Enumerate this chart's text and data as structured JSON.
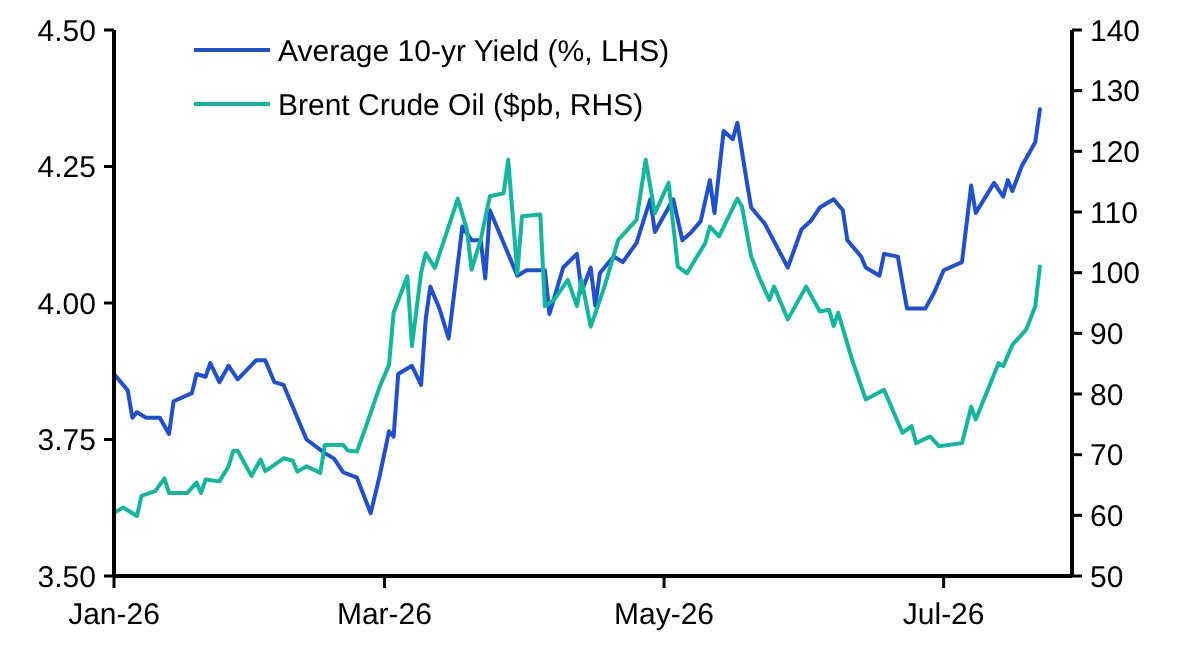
{
  "chart_data": {
    "type": "line",
    "xlim": [
      "2026-01-01",
      "2026-07-29"
    ],
    "xticks": [
      {
        "value": "2026-01-01",
        "label": "Jan-26"
      },
      {
        "value": "2026-03-01",
        "label": "Mar-26"
      },
      {
        "value": "2026-05-01",
        "label": "May-26"
      },
      {
        "value": "2026-07-01",
        "label": "Jul-26"
      }
    ],
    "ylim": [
      3.5,
      4.5
    ],
    "yticks": [
      {
        "value": 3.5,
        "label": "3.50"
      },
      {
        "value": 3.75,
        "label": "3.75"
      },
      {
        "value": 4,
        "label": "4.00"
      },
      {
        "value": 4.25,
        "label": "4.25"
      },
      {
        "value": 4.5,
        "label": "4.50"
      }
    ],
    "y2lim": [
      50,
      140
    ],
    "y2ticks": [
      50,
      60,
      70,
      80,
      90,
      100,
      110,
      120,
      130,
      140
    ],
    "grid": false,
    "legend": "top left",
    "marker": "none",
    "line_style": "solid",
    "series": [
      {
        "name": "Average 10-yr Yield (%, LHS)",
        "color": "#1f4fd2",
        "x": [
          "2026-01-01",
          "2026-01-04",
          "2026-01-05",
          "2026-01-06",
          "2026-01-08",
          "2026-01-11",
          "2026-01-13",
          "2026-01-14",
          "2026-01-18",
          "2026-01-19",
          "2026-01-21",
          "2026-01-22",
          "2026-01-24",
          "2026-01-26",
          "2026-01-28",
          "2026-02-01",
          "2026-02-03",
          "2026-02-05",
          "2026-02-07",
          "2026-02-12",
          "2026-02-16",
          "2026-02-18",
          "2026-02-20",
          "2026-02-23",
          "2026-02-26",
          "2026-02-28",
          "2026-03-02",
          "2026-03-03",
          "2026-03-04",
          "2026-03-07",
          "2026-03-09",
          "2026-03-10",
          "2026-03-11",
          "2026-03-13",
          "2026-03-15",
          "2026-03-18",
          "2026-03-20",
          "2026-03-22",
          "2026-03-23",
          "2026-03-24",
          "2026-03-30",
          "2026-04-01",
          "2026-04-05",
          "2026-04-06",
          "2026-04-09",
          "2026-04-12",
          "2026-04-13",
          "2026-04-15",
          "2026-04-16",
          "2026-04-17",
          "2026-04-20",
          "2026-04-22",
          "2026-04-25",
          "2026-04-28",
          "2026-04-29",
          "2026-05-03",
          "2026-05-05",
          "2026-05-07",
          "2026-05-09",
          "2026-05-11",
          "2026-05-12",
          "2026-05-14",
          "2026-05-16",
          "2026-05-17",
          "2026-05-19",
          "2026-05-20",
          "2026-05-23",
          "2026-05-28",
          "2026-05-31",
          "2026-06-02",
          "2026-06-04",
          "2026-06-07",
          "2026-06-09",
          "2026-06-10",
          "2026-06-13",
          "2026-06-14",
          "2026-06-17",
          "2026-06-18",
          "2026-06-21",
          "2026-06-23",
          "2026-06-27",
          "2026-06-29",
          "2026-07-01",
          "2026-07-05",
          "2026-07-07",
          "2026-07-08",
          "2026-07-12",
          "2026-07-14",
          "2026-07-15",
          "2026-07-16",
          "2026-07-18",
          "2026-07-21",
          "2026-07-22"
        ],
        "values": [
          3.87,
          3.84,
          3.79,
          3.8,
          3.79,
          3.79,
          3.76,
          3.82,
          3.835,
          3.87,
          3.865,
          3.89,
          3.855,
          3.885,
          3.86,
          3.895,
          3.895,
          3.855,
          3.85,
          3.75,
          3.725,
          3.715,
          3.69,
          3.68,
          3.615,
          3.685,
          3.765,
          3.755,
          3.87,
          3.885,
          3.85,
          3.97,
          4.03,
          3.99,
          3.935,
          4.14,
          4.115,
          4.115,
          4.045,
          4.17,
          4.05,
          4.06,
          4.06,
          3.98,
          4.065,
          4.09,
          4.02,
          4.065,
          3.995,
          4.055,
          4.085,
          4.075,
          4.11,
          4.19,
          4.13,
          4.19,
          4.115,
          4.13,
          4.15,
          4.225,
          4.165,
          4.315,
          4.3,
          4.33,
          4.225,
          4.175,
          4.145,
          4.065,
          4.135,
          4.15,
          4.175,
          4.19,
          4.17,
          4.115,
          4.085,
          4.065,
          4.05,
          4.09,
          4.085,
          3.99,
          3.99,
          4.02,
          4.06,
          4.075,
          4.215,
          4.165,
          4.22,
          4.195,
          4.225,
          4.205,
          4.25,
          4.295,
          4.355
        ]
      },
      {
        "name": "Brent Crude Oil ($pb, RHS)",
        "color": "#12b89e",
        "axis": "y2",
        "x": [
          "2026-01-01",
          "2026-01-03",
          "2026-01-06",
          "2026-01-07",
          "2026-01-10",
          "2026-01-12",
          "2026-01-13",
          "2026-01-17",
          "2026-01-19",
          "2026-01-20",
          "2026-01-21",
          "2026-01-24",
          "2026-01-26",
          "2026-01-27",
          "2026-01-28",
          "2026-01-31",
          "2026-02-02",
          "2026-02-03",
          "2026-02-07",
          "2026-02-09",
          "2026-02-10",
          "2026-02-12",
          "2026-02-15",
          "2026-02-16",
          "2026-02-20",
          "2026-02-21",
          "2026-02-23",
          "2026-02-25",
          "2026-02-28",
          "2026-03-02",
          "2026-03-03",
          "2026-03-06",
          "2026-03-07",
          "2026-03-09",
          "2026-03-10",
          "2026-03-12",
          "2026-03-15",
          "2026-03-17",
          "2026-03-19",
          "2026-03-20",
          "2026-03-22",
          "2026-03-24",
          "2026-03-27",
          "2026-03-28",
          "2026-03-30",
          "2026-03-31",
          "2026-04-04",
          "2026-04-05",
          "2026-04-07",
          "2026-04-10",
          "2026-04-12",
          "2026-04-13",
          "2026-04-15",
          "2026-04-18",
          "2026-04-21",
          "2026-04-25",
          "2026-04-27",
          "2026-04-29",
          "2026-05-02",
          "2026-05-04",
          "2026-05-06",
          "2026-05-10",
          "2026-05-11",
          "2026-05-13",
          "2026-05-17",
          "2026-05-18",
          "2026-05-20",
          "2026-05-22",
          "2026-05-24",
          "2026-05-25",
          "2026-05-28",
          "2026-06-01",
          "2026-06-04",
          "2026-06-06",
          "2026-06-07",
          "2026-06-08",
          "2026-06-11",
          "2026-06-14",
          "2026-06-18",
          "2026-06-22",
          "2026-06-24",
          "2026-06-25",
          "2026-06-28",
          "2026-06-30",
          "2026-07-05",
          "2026-07-07",
          "2026-07-08",
          "2026-07-13",
          "2026-07-14",
          "2026-07-16",
          "2026-07-19",
          "2026-07-21",
          "2026-07-22"
        ],
        "values": [
          60.4,
          61.3,
          59.9,
          63.2,
          64,
          66.1,
          63.7,
          63.7,
          65.4,
          63.7,
          65.9,
          65.6,
          68.1,
          70.6,
          70.6,
          66.5,
          69.2,
          67.3,
          69.4,
          69,
          67.2,
          68.1,
          67,
          71.6,
          71.6,
          70.7,
          70.5,
          74.7,
          81.3,
          84.8,
          93.4,
          99.4,
          87.9,
          100,
          103.2,
          100.8,
          107.6,
          112.2,
          107.1,
          100.5,
          105.4,
          112.6,
          113.1,
          118.6,
          99.9,
          109.3,
          109.6,
          94.5,
          95.5,
          98.8,
          94.5,
          98.8,
          91.1,
          97.7,
          105.4,
          108.7,
          118.6,
          109.8,
          114.8,
          101,
          99.9,
          104.9,
          107.6,
          106,
          112.2,
          110.9,
          102.7,
          98.8,
          95.5,
          97.7,
          92.3,
          97.7,
          93.6,
          93.9,
          91.2,
          93.4,
          85.7,
          79.1,
          80.7,
          73.6,
          74.7,
          71.9,
          73,
          71.4,
          71.9,
          77.9,
          75.8,
          85.1,
          84.6,
          88.1,
          90.6,
          94.5,
          101
        ]
      }
    ]
  }
}
